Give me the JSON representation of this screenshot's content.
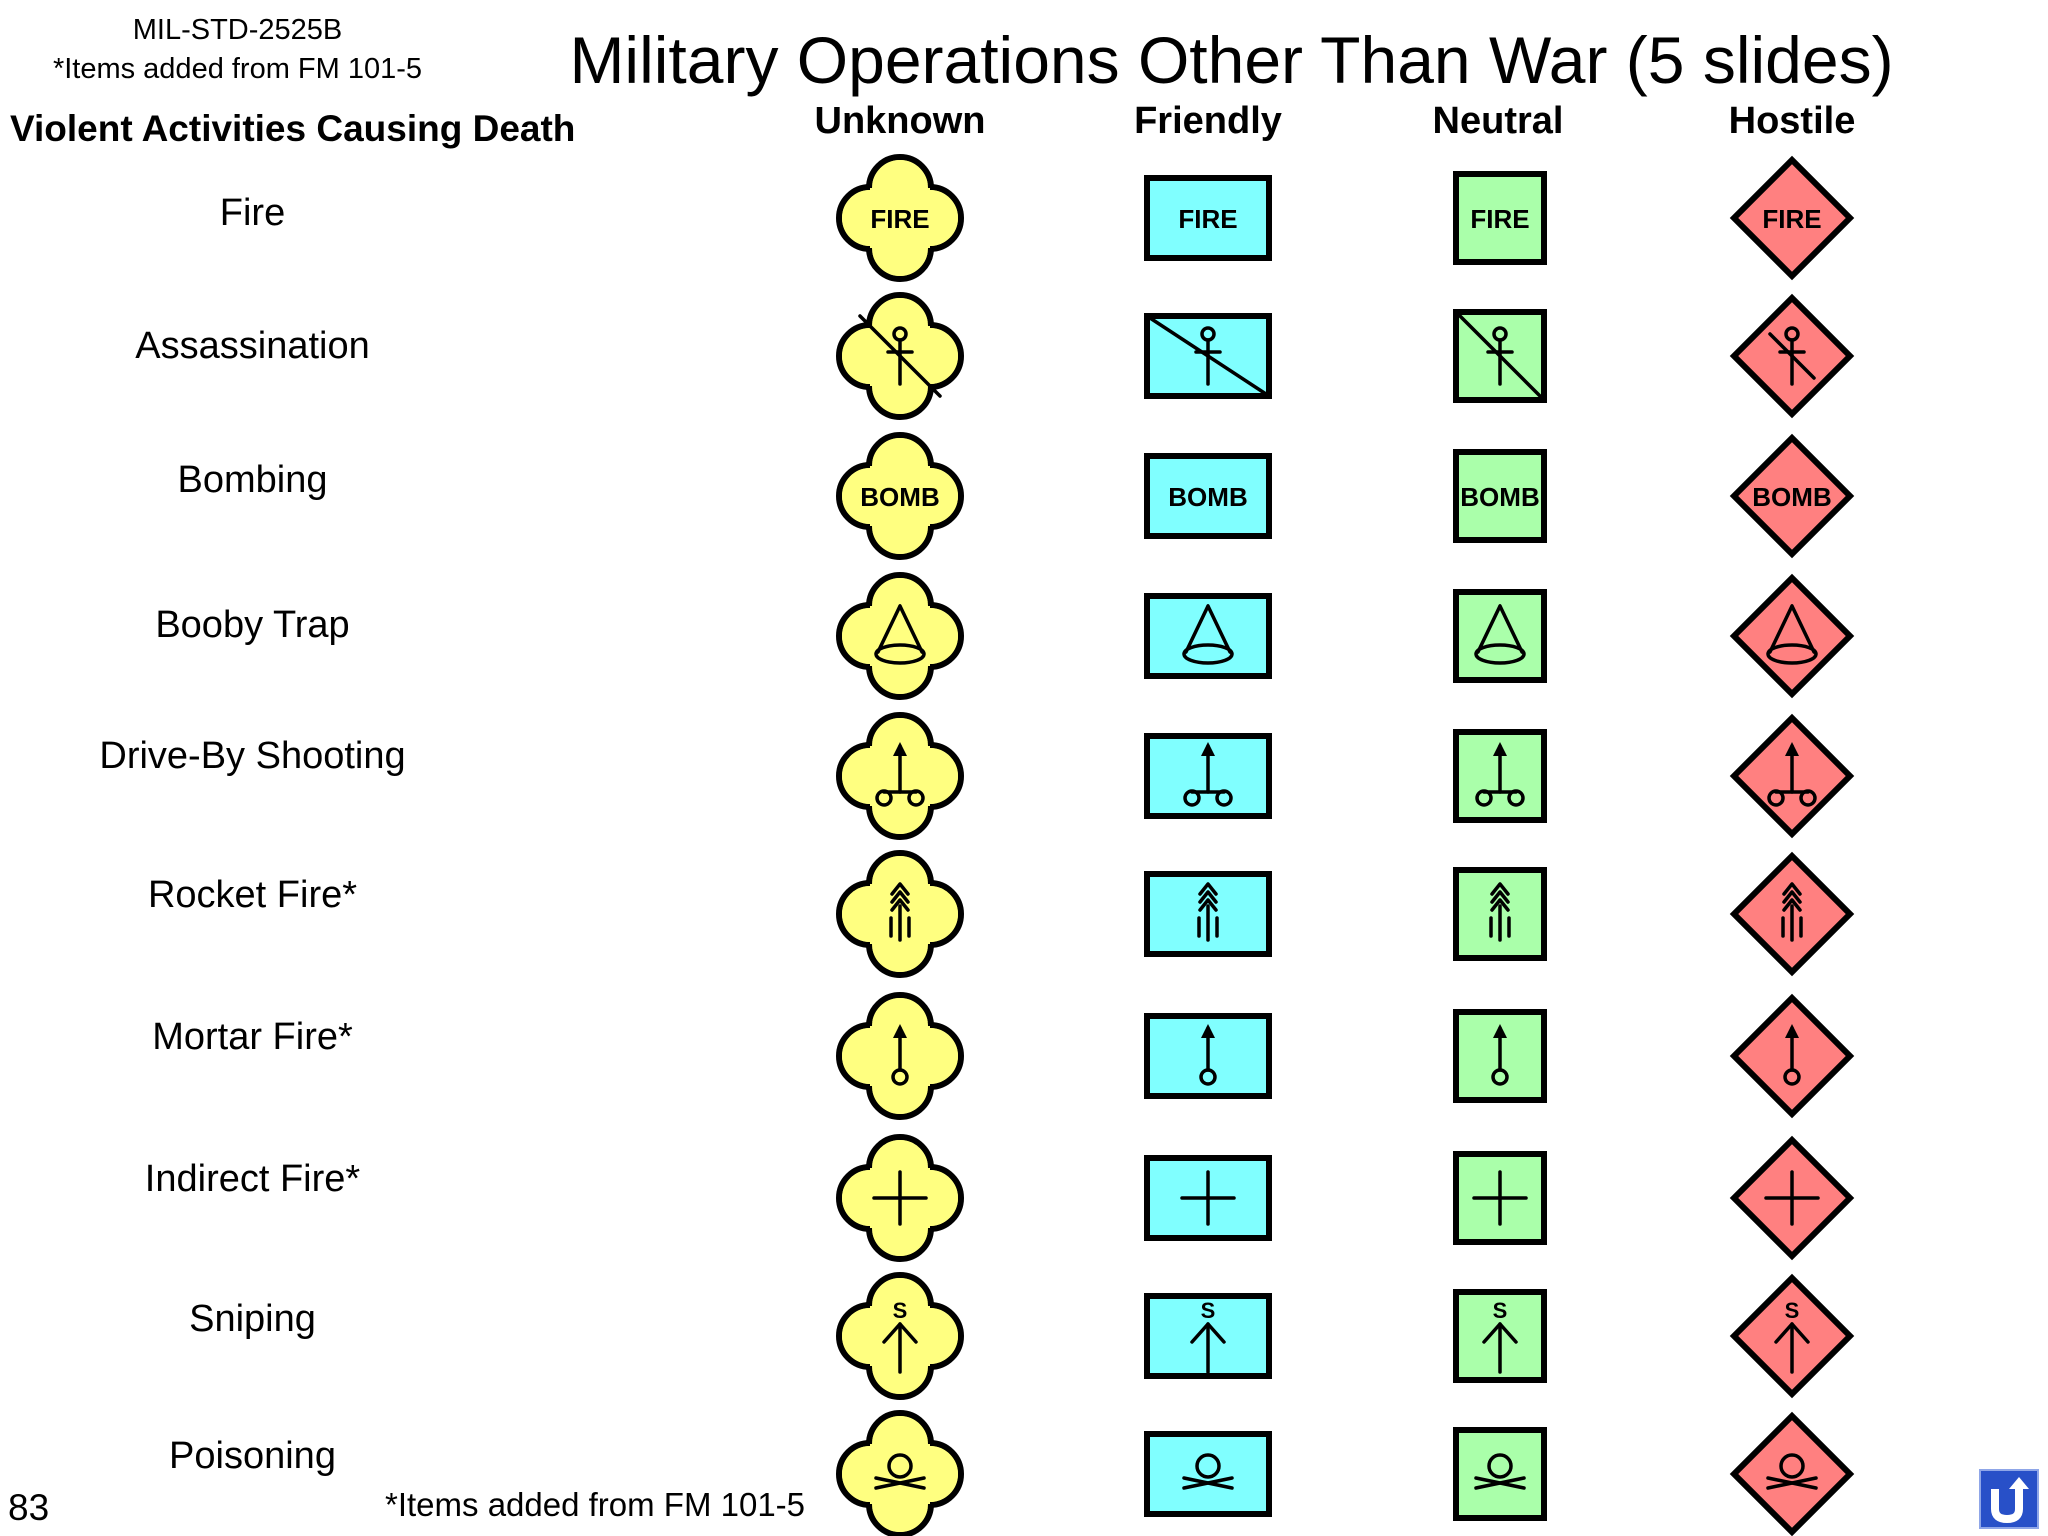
{
  "header": {
    "standard": "MIL-STD-2525B",
    "items_note": "*Items added from FM 101-5",
    "title": "Military Operations Other Than War (5 slides)",
    "section_heading": "Violent Activities Causing Death"
  },
  "columns": [
    {
      "label": "Unknown",
      "frame": "quatrefoil",
      "fill": "#ffff80"
    },
    {
      "label": "Friendly",
      "frame": "rectangle",
      "fill": "#80ffff"
    },
    {
      "label": "Neutral",
      "frame": "square",
      "fill": "#aaffaa"
    },
    {
      "label": "Hostile",
      "frame": "diamond",
      "fill": "#ff8080"
    }
  ],
  "rows": [
    {
      "label": "Fire",
      "glyph": "text",
      "glyph_text": "FIRE"
    },
    {
      "label": "Assassination",
      "glyph": "assassination-icon",
      "glyph_text": ""
    },
    {
      "label": "Bombing",
      "glyph": "text",
      "glyph_text": "BOMB"
    },
    {
      "label": "Booby Trap",
      "glyph": "booby-trap-icon",
      "glyph_text": ""
    },
    {
      "label": "Drive-By Shooting",
      "glyph": "drive-by-shooting-icon",
      "glyph_text": ""
    },
    {
      "label": "Rocket Fire*",
      "glyph": "rocket-fire-icon",
      "glyph_text": ""
    },
    {
      "label": "Mortar Fire*",
      "glyph": "mortar-fire-icon",
      "glyph_text": ""
    },
    {
      "label": "Indirect Fire*",
      "glyph": "indirect-fire-icon",
      "glyph_text": ""
    },
    {
      "label": "Sniping",
      "glyph": "sniping-icon",
      "glyph_text": "S"
    },
    {
      "label": "Poisoning",
      "glyph": "poisoning-icon",
      "glyph_text": ""
    }
  ],
  "footer": {
    "page_number": "83",
    "items_note": "*Items added from FM 101-5",
    "nav_icon": "return-arrow-icon"
  }
}
